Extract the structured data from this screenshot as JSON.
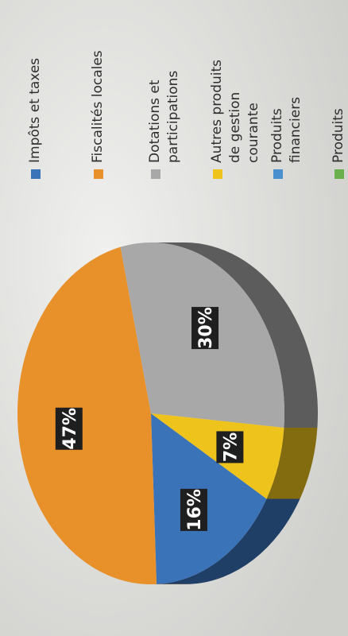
{
  "chart_data": {
    "type": "pie",
    "title": "",
    "slices": [
      {
        "label": "Impôts et taxes",
        "value": 16,
        "display": "16%",
        "color": "#3b73b9"
      },
      {
        "label": "Fiscalités locales",
        "value": 47,
        "display": "47%",
        "color": "#e8902a"
      },
      {
        "label": "Dotations et participations",
        "value": 30,
        "display": "30%",
        "color": "#a8a8a8"
      },
      {
        "label": "Autres produits de gestion courante",
        "value": 7,
        "display": "7%",
        "color": "#eec31b"
      },
      {
        "label": "Produits financiers",
        "value": 0,
        "display": "",
        "color": "#4a90cf"
      },
      {
        "label": "Produits spécifiques",
        "value": 0,
        "display": "",
        "color": "#6ab04c"
      }
    ],
    "legend_position": "right"
  }
}
